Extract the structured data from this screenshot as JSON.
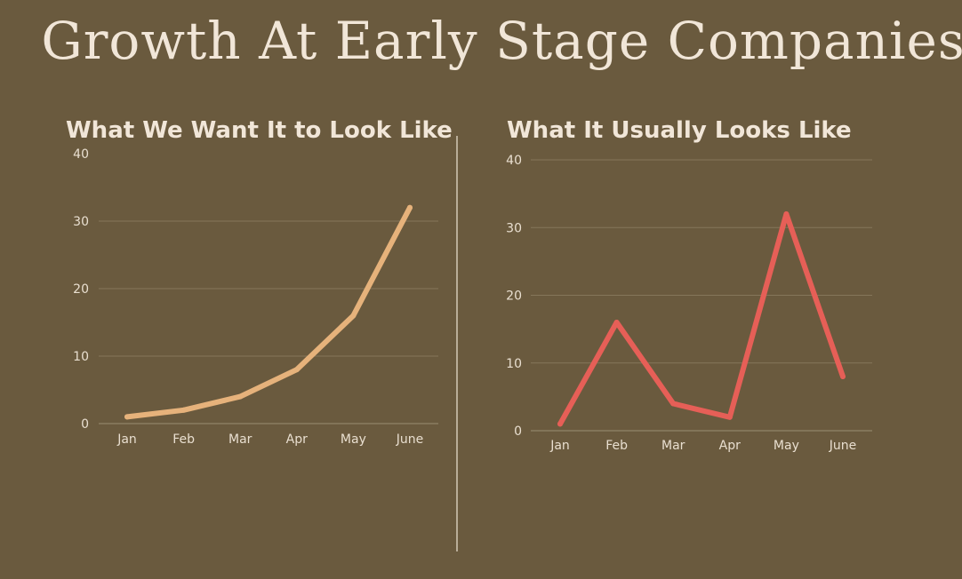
{
  "page": {
    "title": "Growth At Early Stage Companies",
    "background": "#6a5a3e",
    "title_color": "#f1e6d8",
    "divider_color": "#b9ad98"
  },
  "chart_data": [
    {
      "type": "line",
      "title": "What We Want It to Look Like",
      "categories": [
        "Jan",
        "Feb",
        "Mar",
        "Apr",
        "May",
        "June"
      ],
      "series": [
        {
          "values": [
            1,
            2,
            4,
            8,
            16,
            32
          ],
          "color": "#e6b27b"
        }
      ],
      "ylim": [
        0,
        40
      ],
      "yticks": [
        0,
        10,
        20,
        30,
        40
      ],
      "xlabel": "",
      "ylabel": "",
      "grid": true
    },
    {
      "type": "line",
      "title": "What It Usually Looks Like",
      "categories": [
        "Jan",
        "Feb",
        "Mar",
        "Apr",
        "May",
        "June"
      ],
      "series": [
        {
          "values": [
            1,
            16,
            4,
            2,
            32,
            8
          ],
          "color": "#e65f57"
        }
      ],
      "ylim": [
        0,
        40
      ],
      "yticks": [
        0,
        10,
        20,
        30,
        40
      ],
      "xlabel": "",
      "ylabel": "",
      "grid": true
    }
  ],
  "style": {
    "tick_color": "#e9dfd0",
    "grid_color": "#85765a",
    "axis_color": "#9b8d73"
  }
}
